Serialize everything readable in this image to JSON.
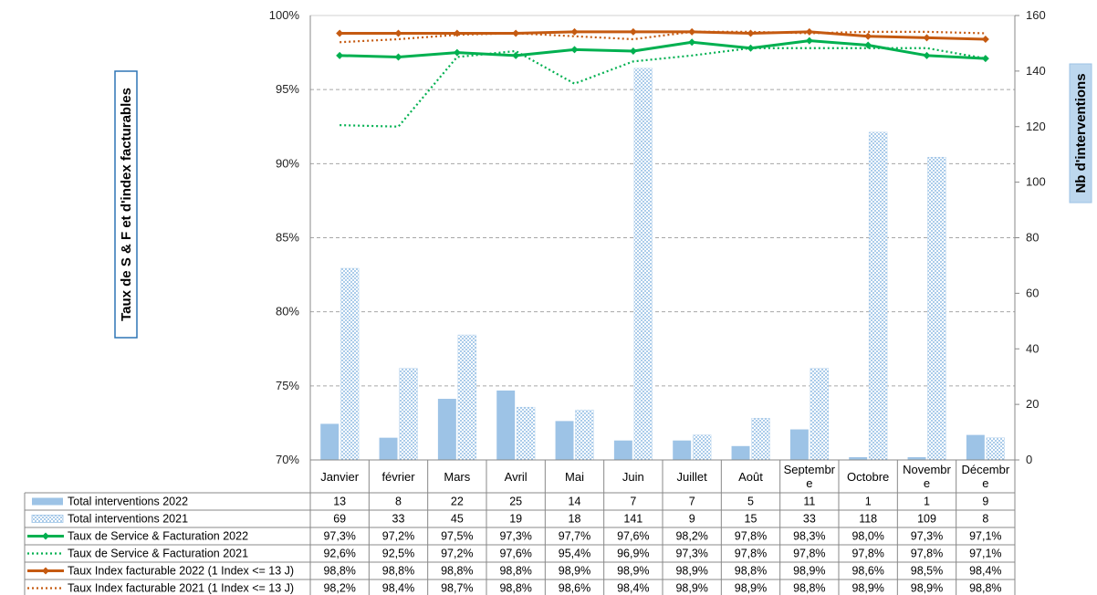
{
  "chart_data": {
    "type": "bar",
    "categories": [
      "Janvier",
      "février",
      "Mars",
      "Avril",
      "Mai",
      "Juin",
      "Juillet",
      "Août",
      "Septembre",
      "Octobre",
      "Novembre",
      "Décembre"
    ],
    "category_labels_display": [
      [
        "Janvier"
      ],
      [
        "février"
      ],
      [
        "Mars"
      ],
      [
        "Avril"
      ],
      [
        "Mai"
      ],
      [
        "Juin"
      ],
      [
        "Juillet"
      ],
      [
        "Août"
      ],
      [
        "Septembr",
        "e"
      ],
      [
        "Octobre"
      ],
      [
        "Novembr",
        "e"
      ],
      [
        "Décembr",
        "e"
      ]
    ],
    "ylabel": "Taux de S & F et d'index facturables",
    "y2label": "Nb d'interventions",
    "ylim": [
      0.7,
      1.0
    ],
    "y_ticks": [
      "70%",
      "75%",
      "80%",
      "85%",
      "90%",
      "95%",
      "100%"
    ],
    "y2lim": [
      0,
      160
    ],
    "y2_ticks": [
      "0",
      "20",
      "40",
      "60",
      "80",
      "100",
      "120",
      "140",
      "160"
    ],
    "grid": true,
    "series": [
      {
        "name": "Total interventions 2022",
        "kind": "bar",
        "axis": "right",
        "color": "#9dc3e6",
        "pattern": "solid",
        "values": [
          13,
          8,
          22,
          25,
          14,
          7,
          7,
          5,
          11,
          1,
          1,
          9
        ],
        "table_values": [
          "13",
          "8",
          "22",
          "25",
          "14",
          "7",
          "7",
          "5",
          "11",
          "1",
          "1",
          "9"
        ]
      },
      {
        "name": "Total interventions 2021",
        "kind": "bar",
        "axis": "right",
        "color": "#9dc3e6",
        "pattern": "dotted",
        "values": [
          69,
          33,
          45,
          19,
          18,
          141,
          9,
          15,
          33,
          118,
          109,
          8
        ],
        "table_values": [
          "69",
          "33",
          "45",
          "19",
          "18",
          "141",
          "9",
          "15",
          "33",
          "118",
          "109",
          "8"
        ]
      },
      {
        "name": "Taux de Service & Facturation 2022",
        "kind": "line",
        "axis": "left",
        "color": "#00b050",
        "style": "solid",
        "marker": "diamond",
        "values": [
          0.973,
          0.972,
          0.975,
          0.973,
          0.977,
          0.976,
          0.982,
          0.978,
          0.983,
          0.98,
          0.973,
          0.971
        ],
        "table_values": [
          "97,3%",
          "97,2%",
          "97,5%",
          "97,3%",
          "97,7%",
          "97,6%",
          "98,2%",
          "97,8%",
          "98,3%",
          "98,0%",
          "97,3%",
          "97,1%"
        ]
      },
      {
        "name": "Taux de Service & Facturation 2021",
        "kind": "line",
        "axis": "left",
        "color": "#00b050",
        "style": "dotted",
        "marker": "none",
        "values": [
          0.926,
          0.925,
          0.972,
          0.976,
          0.954,
          0.969,
          0.973,
          0.978,
          0.978,
          0.978,
          0.978,
          0.971
        ],
        "table_values": [
          "92,6%",
          "92,5%",
          "97,2%",
          "97,6%",
          "95,4%",
          "96,9%",
          "97,3%",
          "97,8%",
          "97,8%",
          "97,8%",
          "97,8%",
          "97,1%"
        ]
      },
      {
        "name": "Taux Index facturable 2022 (1 Index <= 13 J)",
        "kind": "line",
        "axis": "left",
        "color": "#c55a11",
        "style": "solid",
        "marker": "diamond",
        "values": [
          0.988,
          0.988,
          0.988,
          0.988,
          0.989,
          0.989,
          0.989,
          0.988,
          0.989,
          0.986,
          0.985,
          0.984
        ],
        "table_values": [
          "98,8%",
          "98,8%",
          "98,8%",
          "98,8%",
          "98,9%",
          "98,9%",
          "98,9%",
          "98,8%",
          "98,9%",
          "98,6%",
          "98,5%",
          "98,4%"
        ]
      },
      {
        "name": "Taux Index facturable 2021 (1 Index <= 13 J)",
        "kind": "line",
        "axis": "left",
        "color": "#c55a11",
        "style": "dotted",
        "marker": "none",
        "values": [
          0.982,
          0.984,
          0.987,
          0.988,
          0.986,
          0.984,
          0.989,
          0.989,
          0.988,
          0.989,
          0.989,
          0.988
        ],
        "table_values": [
          "98,2%",
          "98,4%",
          "98,7%",
          "98,8%",
          "98,6%",
          "98,4%",
          "98,9%",
          "98,9%",
          "98,8%",
          "98,9%",
          "98,9%",
          "98,8%"
        ]
      }
    ]
  }
}
